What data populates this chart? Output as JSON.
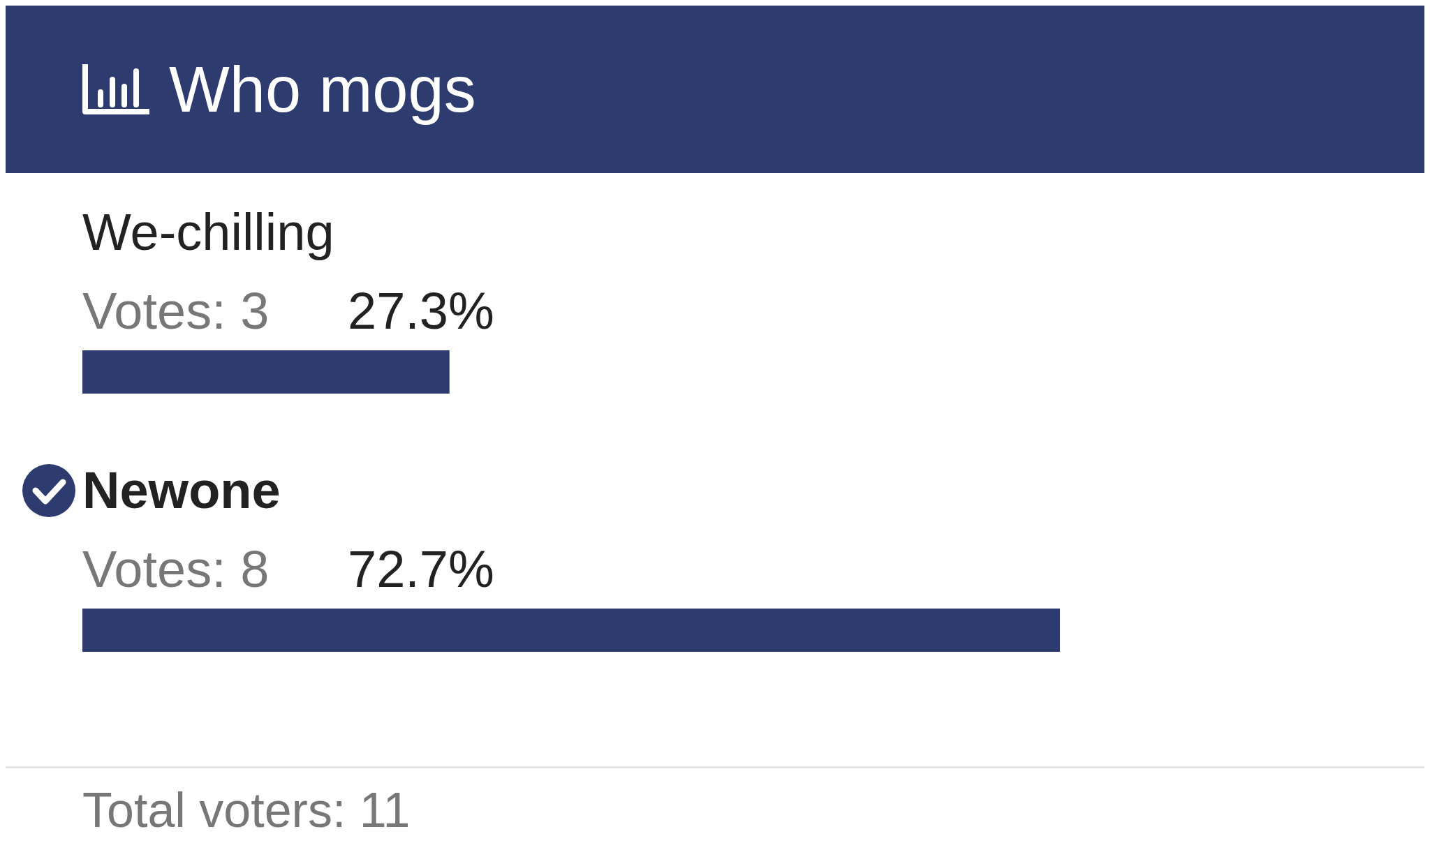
{
  "chart_data": {
    "type": "bar",
    "orientation": "horizontal",
    "title": "Who mogs",
    "categories": [
      "We-chilling",
      "Newone"
    ],
    "values": [
      27.3,
      72.7
    ],
    "value_labels": [
      "27.3%",
      "72.7%"
    ],
    "color": "#2e3b6e",
    "tick_labels": false,
    "annotations": [
      "Votes: 3",
      "Votes: 8",
      "Total voters: 11"
    ]
  }
}
